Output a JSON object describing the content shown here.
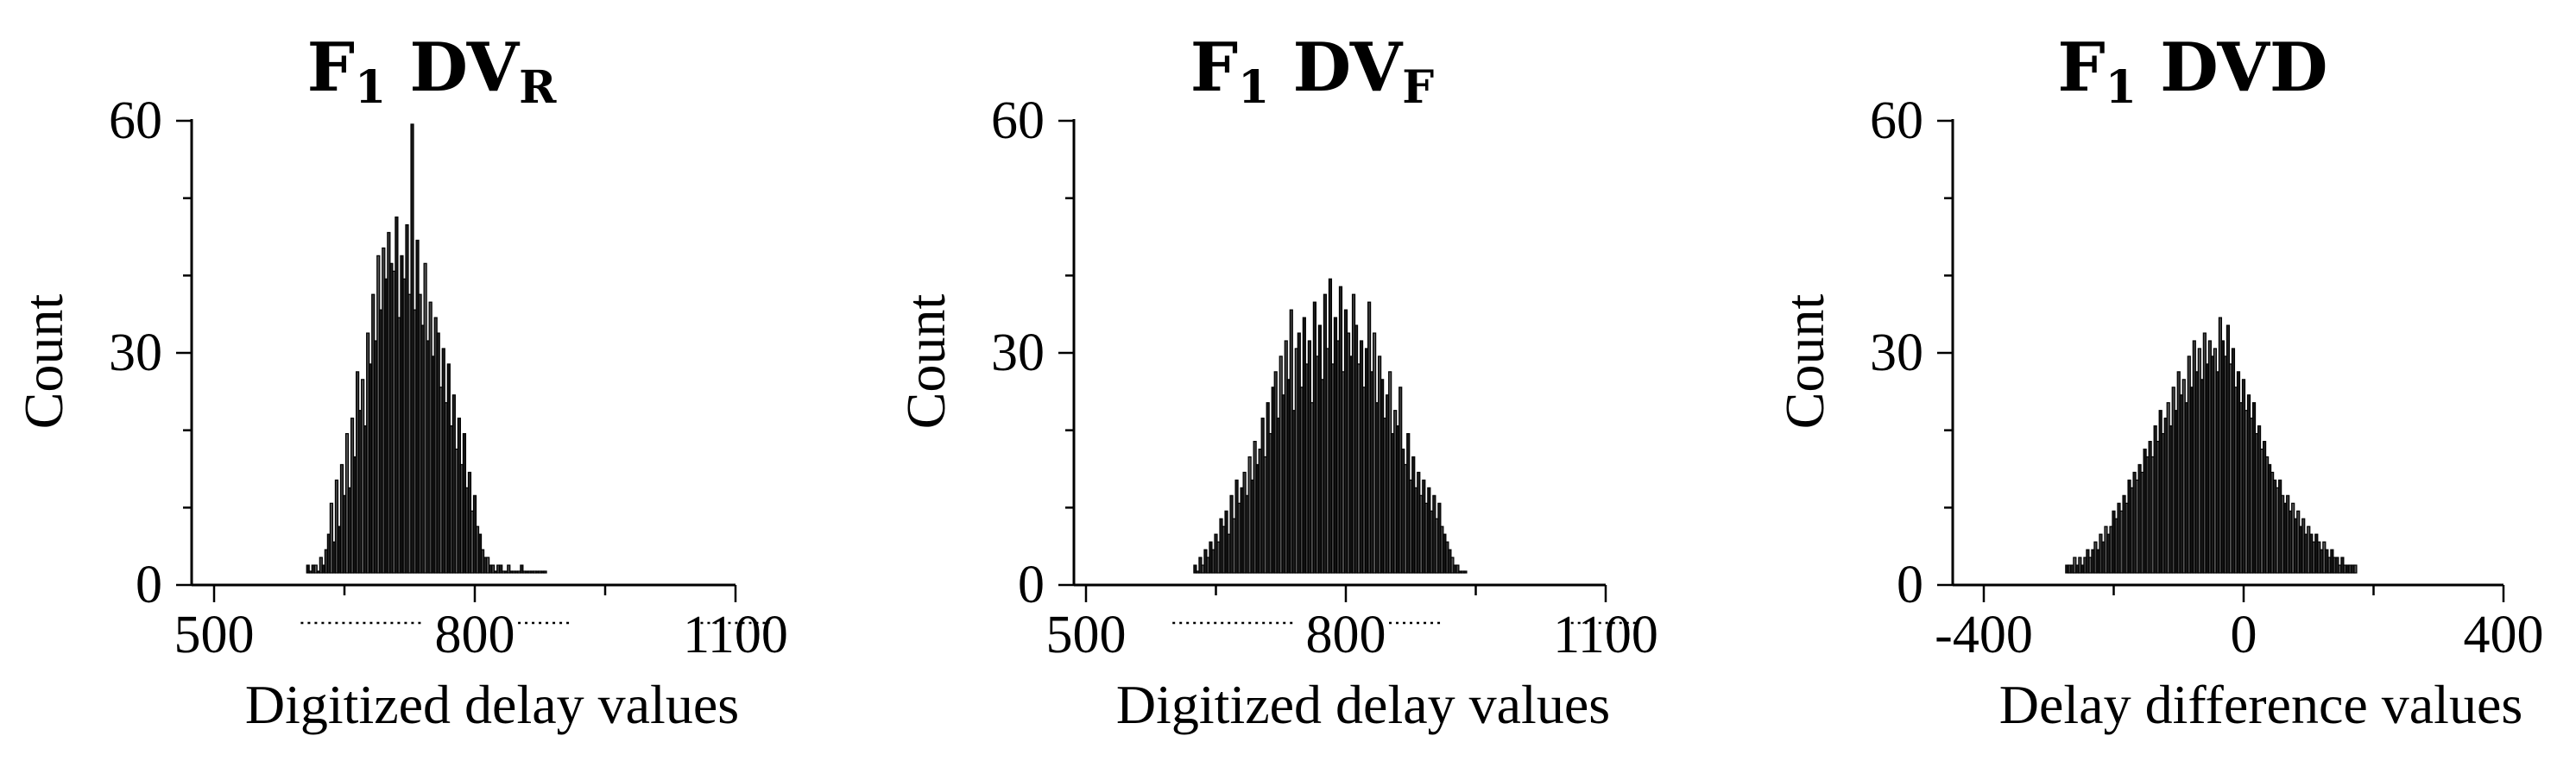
{
  "chart_data": [
    {
      "type": "bar",
      "title_main": "F",
      "title_sub1": "1",
      "title_mid": " DV",
      "title_sub2": "R",
      "title_tail": "",
      "xlabel": "Digitized delay values",
      "ylabel": "Count",
      "xlim": [
        500,
        1100
      ],
      "ylim": [
        0,
        60
      ],
      "xticks": [
        500,
        800,
        1100
      ],
      "xtick_labels": [
        "500",
        "800",
        "1100"
      ],
      "yticks": [
        0,
        30,
        60
      ],
      "ytick_labels": [
        "0",
        "30",
        "60"
      ],
      "bin_width": 3,
      "x": [
        608,
        611,
        614,
        617,
        620,
        623,
        626,
        629,
        632,
        635,
        638,
        641,
        644,
        647,
        650,
        653,
        656,
        659,
        662,
        665,
        668,
        671,
        674,
        677,
        680,
        683,
        686,
        689,
        692,
        695,
        698,
        701,
        704,
        707,
        710,
        713,
        716,
        719,
        722,
        725,
        728,
        731,
        734,
        737,
        740,
        743,
        746,
        749,
        752,
        755,
        758,
        761,
        764,
        767,
        770,
        773,
        776,
        779,
        782,
        785,
        788,
        791,
        794,
        797,
        800,
        803,
        806,
        809,
        812,
        815,
        818,
        821,
        824,
        827,
        830,
        833,
        836,
        839,
        842,
        845,
        848,
        851,
        854,
        857,
        860,
        863,
        866,
        869,
        872,
        875,
        878,
        881
      ],
      "values": [
        1,
        0,
        1,
        1,
        0,
        2,
        1,
        3,
        5,
        9,
        4,
        12,
        6,
        14,
        10,
        18,
        11,
        20,
        15,
        26,
        21,
        25,
        19,
        31,
        27,
        36,
        30,
        41,
        34,
        42,
        38,
        44,
        40,
        39,
        46,
        33,
        41,
        38,
        45,
        36,
        58,
        34,
        43,
        36,
        32,
        40,
        30,
        35,
        28,
        33,
        31,
        24,
        29,
        22,
        27,
        19,
        23,
        16,
        20,
        14,
        18,
        11,
        13,
        8,
        10,
        6,
        5,
        3,
        2,
        2,
        1,
        1,
        0,
        1,
        1,
        0,
        0,
        1,
        0,
        0,
        0,
        0,
        1,
        0,
        0,
        0,
        0,
        0,
        0,
        0,
        0,
        0
      ]
    },
    {
      "type": "bar",
      "title_main": "F",
      "title_sub1": "1",
      "title_mid": " DV",
      "title_sub2": "F",
      "title_tail": "",
      "xlabel": "Digitized delay values",
      "ylabel": "Count",
      "xlim": [
        500,
        1100
      ],
      "ylim": [
        0,
        60
      ],
      "xticks": [
        500,
        800,
        1100
      ],
      "xtick_labels": [
        "500",
        "800",
        "1100"
      ],
      "yticks": [
        0,
        30,
        60
      ],
      "ytick_labels": [
        "0",
        "30",
        "60"
      ],
      "bin_width": 3,
      "x": [
        626,
        629,
        632,
        635,
        638,
        641,
        644,
        647,
        650,
        653,
        656,
        659,
        662,
        665,
        668,
        671,
        674,
        677,
        680,
        683,
        686,
        689,
        692,
        695,
        698,
        701,
        704,
        707,
        710,
        713,
        716,
        719,
        722,
        725,
        728,
        731,
        734,
        737,
        740,
        743,
        746,
        749,
        752,
        755,
        758,
        761,
        764,
        767,
        770,
        773,
        776,
        779,
        782,
        785,
        788,
        791,
        794,
        797,
        800,
        803,
        806,
        809,
        812,
        815,
        818,
        821,
        824,
        827,
        830,
        833,
        836,
        839,
        842,
        845,
        848,
        851,
        854,
        857,
        860,
        863,
        866,
        869,
        872,
        875,
        878,
        881,
        884,
        887,
        890,
        893,
        896,
        899,
        902,
        905,
        908,
        911,
        914,
        917,
        920,
        923,
        926,
        929,
        932,
        935,
        938
      ],
      "values": [
        1,
        0,
        2,
        1,
        3,
        2,
        4,
        3,
        5,
        4,
        7,
        6,
        8,
        5,
        10,
        7,
        12,
        9,
        11,
        13,
        10,
        15,
        12,
        17,
        14,
        16,
        20,
        15,
        22,
        18,
        24,
        26,
        20,
        28,
        23,
        30,
        25,
        34,
        21,
        29,
        31,
        24,
        33,
        27,
        30,
        22,
        35,
        28,
        32,
        25,
        36,
        29,
        38,
        27,
        33,
        30,
        37,
        26,
        34,
        31,
        28,
        36,
        32,
        27,
        30,
        24,
        29,
        35,
        26,
        31,
        22,
        28,
        25,
        20,
        23,
        26,
        18,
        21,
        19,
        24,
        16,
        14,
        18,
        12,
        15,
        11,
        13,
        10,
        12,
        9,
        11,
        8,
        10,
        7,
        9,
        6,
        5,
        4,
        3,
        2,
        1,
        1,
        0,
        0,
        0
      ]
    },
    {
      "type": "bar",
      "title_main": "F",
      "title_sub1": "1",
      "title_mid": " DVD",
      "title_sub2": "",
      "title_tail": "",
      "xlabel": "Delay difference values",
      "ylabel": "Count",
      "xlim": [
        -400,
        400
      ],
      "ylim": [
        0,
        60
      ],
      "xticks": [
        -400,
        0,
        400
      ],
      "xtick_labels": [
        "-400",
        "0",
        "400"
      ],
      "yticks": [
        0,
        30,
        60
      ],
      "ytick_labels": [
        "0",
        "30",
        "60"
      ],
      "bin_width": 4,
      "x": [
        -272,
        -268,
        -264,
        -260,
        -256,
        -252,
        -248,
        -244,
        -240,
        -236,
        -232,
        -228,
        -224,
        -220,
        -216,
        -212,
        -208,
        -204,
        -200,
        -196,
        -192,
        -188,
        -184,
        -180,
        -176,
        -172,
        -168,
        -164,
        -160,
        -156,
        -152,
        -148,
        -144,
        -140,
        -136,
        -132,
        -128,
        -124,
        -120,
        -116,
        -112,
        -108,
        -104,
        -100,
        -96,
        -92,
        -88,
        -84,
        -80,
        -76,
        -72,
        -68,
        -64,
        -60,
        -56,
        -52,
        -48,
        -44,
        -40,
        -36,
        -32,
        -28,
        -24,
        -20,
        -16,
        -12,
        -8,
        -4,
        0,
        4,
        8,
        12,
        16,
        20,
        24,
        28,
        32,
        36,
        40,
        44,
        48,
        52,
        56,
        60,
        64,
        68,
        72,
        76,
        80,
        84,
        88,
        92,
        96,
        100,
        104,
        108,
        112,
        116,
        120,
        124,
        128,
        132,
        136,
        140,
        144,
        148,
        152,
        156,
        160,
        164,
        168,
        172
      ],
      "values": [
        1,
        1,
        1,
        2,
        1,
        2,
        1,
        2,
        3,
        2,
        3,
        4,
        3,
        5,
        4,
        6,
        5,
        6,
        8,
        7,
        9,
        8,
        10,
        9,
        12,
        11,
        13,
        12,
        14,
        13,
        16,
        15,
        17,
        15,
        19,
        17,
        21,
        18,
        20,
        22,
        19,
        24,
        21,
        26,
        23,
        25,
        22,
        28,
        24,
        30,
        26,
        29,
        25,
        31,
        27,
        30,
        28,
        29,
        26,
        33,
        30,
        28,
        32,
        27,
        29,
        24,
        26,
        22,
        25,
        21,
        23,
        20,
        22,
        18,
        19,
        16,
        17,
        15,
        14,
        13,
        12,
        11,
        12,
        10,
        9,
        10,
        8,
        9,
        7,
        8,
        6,
        7,
        5,
        6,
        5,
        4,
        5,
        4,
        3,
        4,
        3,
        2,
        3,
        2,
        2,
        1,
        2,
        1,
        1,
        1,
        1,
        1
      ]
    }
  ]
}
